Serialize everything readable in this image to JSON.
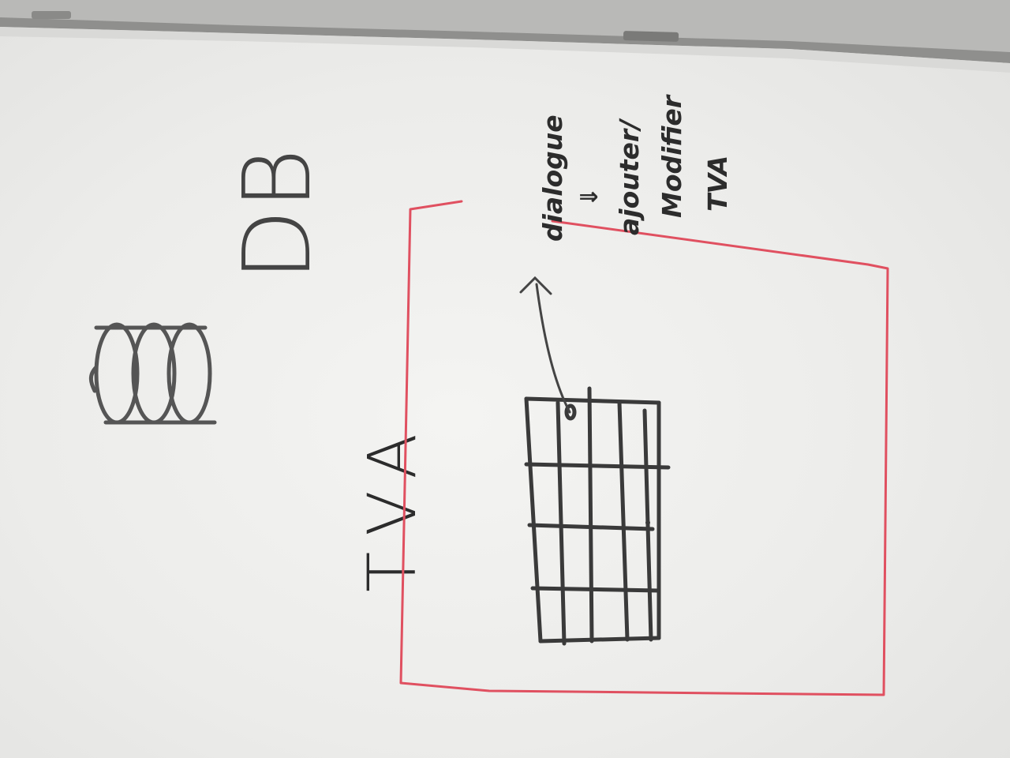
{
  "board": {
    "title": "TVA",
    "db_label": "DB",
    "annotation_lines": [
      "dialogue",
      "⇓",
      "ajouter/",
      "Modifier",
      "TVA"
    ]
  },
  "colors": {
    "board": "#f0f0ee",
    "marker_black": "#2c2c2c",
    "marker_gray": "#555555",
    "marker_red": "#e05060",
    "rail": "#a4a4a2"
  },
  "icons": {
    "database": "database-cylinder-icon",
    "arrow": "arrow-icon"
  }
}
